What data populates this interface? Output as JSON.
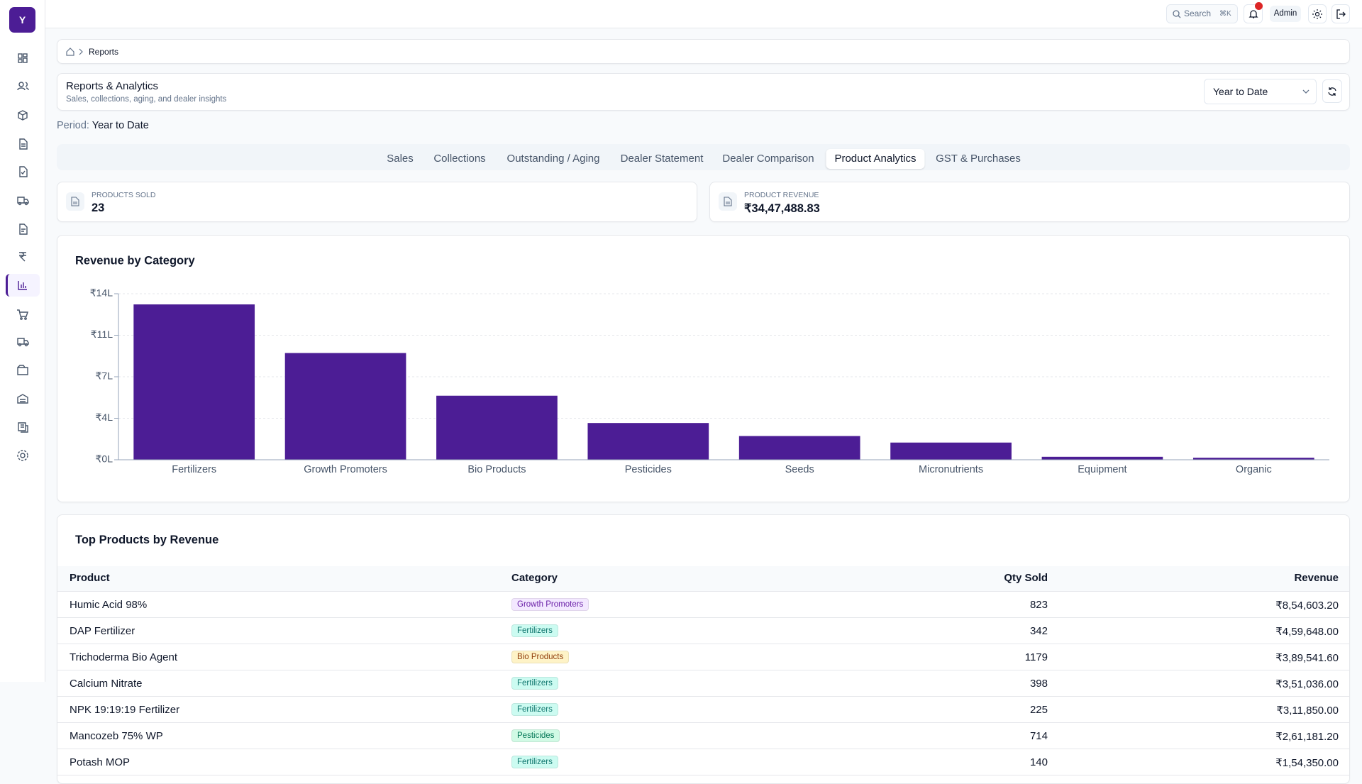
{
  "header": {
    "search": "Search",
    "shortcut": "⌘K",
    "user": "Admin"
  },
  "sidebar": {
    "logo": "Y"
  },
  "breadcrumb": {
    "current": "Reports"
  },
  "page": {
    "title": "Reports & Analytics",
    "subtitle": "Sales, collections, aging, and dealer insights",
    "range": "Year to Date",
    "period_label": "Period:",
    "period": "Year to Date"
  },
  "tabs": {
    "items": [
      "Sales",
      "Collections",
      "Outstanding / Aging",
      "Dealer Statement",
      "Dealer Comparison",
      "Product Analytics",
      "GST & Purchases"
    ],
    "active": 5
  },
  "stats": [
    {
      "label": "PRODUCTS SOLD",
      "value": "23"
    },
    {
      "label": "PRODUCT REVENUE",
      "value": "₹34,47,488.83"
    }
  ],
  "chart_data": {
    "type": "bar",
    "title": "Revenue by Category",
    "categories": [
      "Fertilizers",
      "Growth Promoters",
      "Bio Products",
      "Pesticides",
      "Seeds",
      "Micronutrients",
      "Equipment",
      "Organic"
    ],
    "values": [
      1310000,
      900000,
      540000,
      310000,
      200000,
      145000,
      25000,
      17000
    ],
    "color": "#4c1d95",
    "ylim": [
      0,
      1400000
    ],
    "yticks": [
      {
        "value": 0,
        "label": "₹0L"
      },
      {
        "value": 350000,
        "label": "₹4L"
      },
      {
        "value": 700000,
        "label": "₹7L"
      },
      {
        "value": 1050000,
        "label": "₹11L"
      },
      {
        "value": 1400000,
        "label": "₹14L"
      }
    ],
    "grid": true
  },
  "table": {
    "title": "Top Products by Revenue",
    "columns": [
      "Product",
      "Category",
      "Qty Sold",
      "Revenue"
    ],
    "rows": [
      {
        "product": "Humic Acid 98%",
        "category": "Growth Promoters",
        "qty": 823,
        "revenue": "₹8,54,603.20",
        "badge": "#f3e8ff",
        "badge_text": "#6b21a8"
      },
      {
        "product": "DAP Fertilizer",
        "category": "Fertilizers",
        "qty": 342,
        "revenue": "₹4,59,648.00",
        "badge": "#ccfbf1",
        "badge_text": "#0f766e"
      },
      {
        "product": "Trichoderma Bio Agent",
        "category": "Bio Products",
        "qty": 1179,
        "revenue": "₹3,89,541.60",
        "badge": "#fef3c7",
        "badge_text": "#92400e"
      },
      {
        "product": "Calcium Nitrate",
        "category": "Fertilizers",
        "qty": 398,
        "revenue": "₹3,51,036.00",
        "badge": "#ccfbf1",
        "badge_text": "#0f766e"
      },
      {
        "product": "NPK 19:19:19 Fertilizer",
        "category": "Fertilizers",
        "qty": 225,
        "revenue": "₹3,11,850.00",
        "badge": "#ccfbf1",
        "badge_text": "#0f766e"
      },
      {
        "product": "Mancozeb 75% WP",
        "category": "Pesticides",
        "qty": 714,
        "revenue": "₹2,61,181.20",
        "badge": "#d1fae5",
        "badge_text": "#047857"
      },
      {
        "product": "Potash MOP",
        "category": "Fertilizers",
        "qty": 140,
        "revenue": "₹1,54,350.00",
        "badge": "#ccfbf1",
        "badge_text": "#0f766e"
      }
    ]
  }
}
